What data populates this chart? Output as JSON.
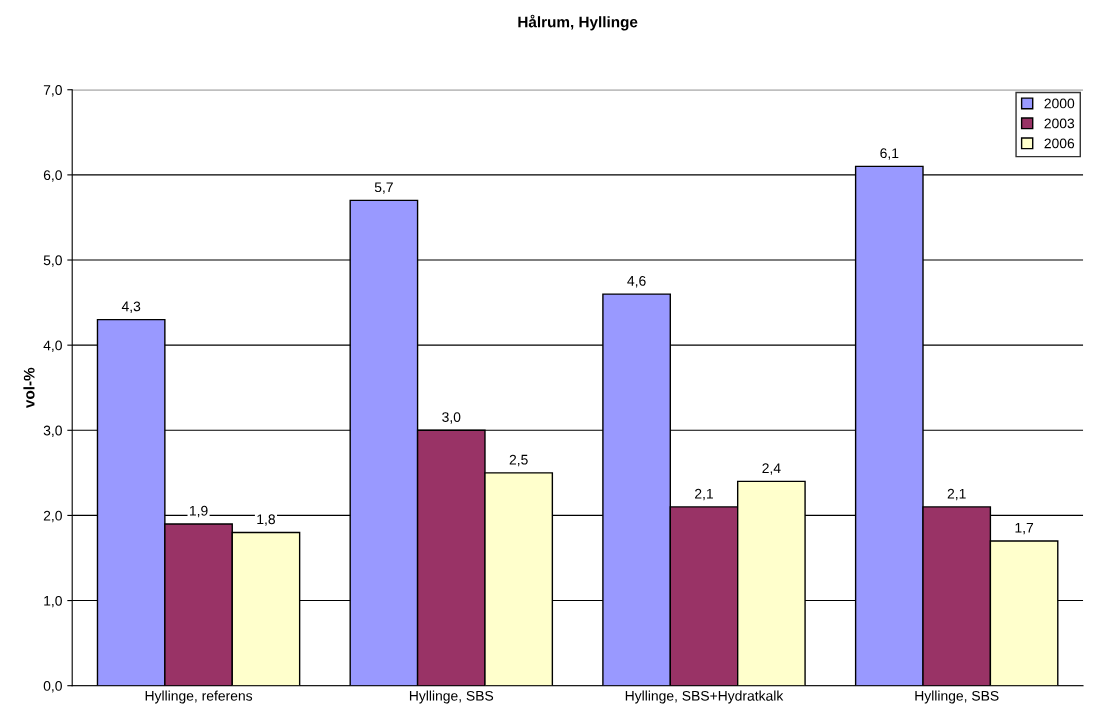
{
  "chart_data": {
    "type": "bar",
    "title": "Hålrum, Hyllinge",
    "ylabel": "vol-%",
    "categories": [
      "Hyllinge, referens",
      "Hyllinge, SBS",
      "Hyllinge, SBS+Hydratkalk",
      "Hyllinge, SBS"
    ],
    "series": [
      {
        "name": "2000",
        "color": "#9999ff",
        "values": [
          4.3,
          5.7,
          4.6,
          6.1
        ],
        "value_labels": [
          "4,3",
          "5,7",
          "4,6",
          "6,1"
        ]
      },
      {
        "name": "2003",
        "color": "#993366",
        "values": [
          1.9,
          3.0,
          2.1,
          2.1
        ],
        "value_labels": [
          "1,9",
          "3,0",
          "2,1",
          "2,1"
        ]
      },
      {
        "name": "2006",
        "color": "#ffffcc",
        "values": [
          1.8,
          2.5,
          2.4,
          1.7
        ],
        "value_labels": [
          "1,8",
          "2,5",
          "2,4",
          "1,7"
        ]
      }
    ],
    "ylim": [
      0,
      7
    ],
    "yticks": [
      {
        "value": 0,
        "label": "0,0"
      },
      {
        "value": 1,
        "label": "1,0"
      },
      {
        "value": 2,
        "label": "2,0"
      },
      {
        "value": 3,
        "label": "3,0"
      },
      {
        "value": 4,
        "label": "4,0"
      },
      {
        "value": 5,
        "label": "5,0"
      },
      {
        "value": 6,
        "label": "6,0"
      },
      {
        "value": 7,
        "label": "7,0"
      }
    ],
    "grid": "y",
    "legend": "top right"
  }
}
